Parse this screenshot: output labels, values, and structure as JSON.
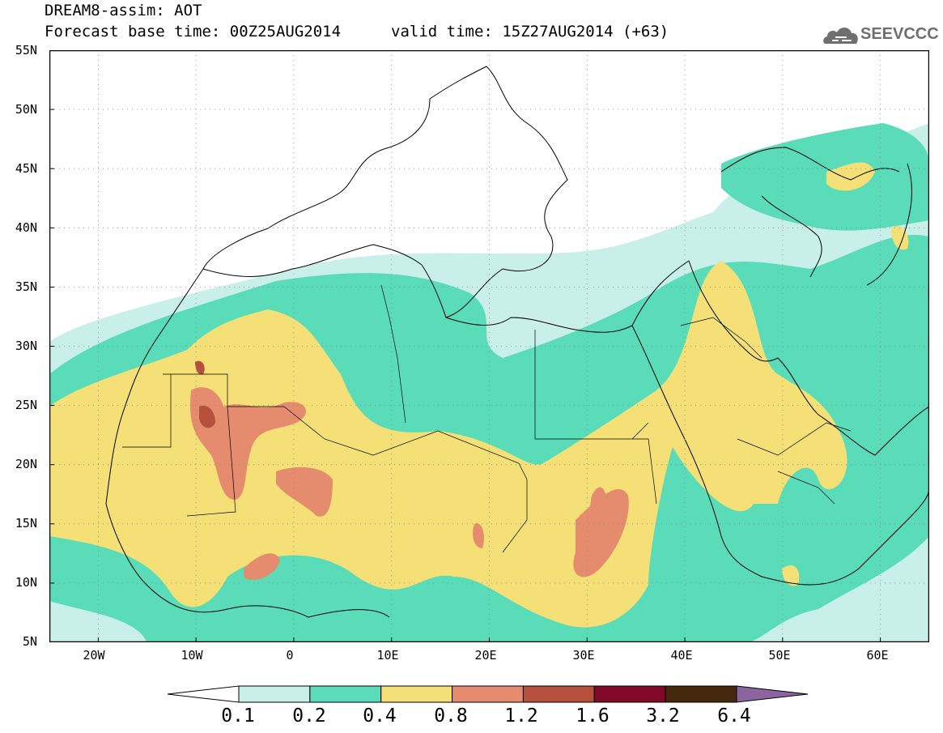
{
  "header": {
    "line1": "DREAM8-assim: AOT",
    "base_time": "Forecast base time: 00Z25AUG2014",
    "valid_time": "valid time: 15Z27AUG2014 (+63)"
  },
  "logo": {
    "text": "SEEVCCC",
    "icon": "cloud-icon",
    "color": "#6f6f6f"
  },
  "map": {
    "projection": "lat-lon",
    "lon_range": [
      -25,
      65
    ],
    "lat_range": [
      5,
      55
    ],
    "grid": "dotted",
    "lat_labels": [
      "55N",
      "50N",
      "45N",
      "40N",
      "35N",
      "30N",
      "25N",
      "20N",
      "15N",
      "10N",
      "5N"
    ],
    "lat_values": [
      55,
      50,
      45,
      40,
      35,
      30,
      25,
      20,
      15,
      10,
      5
    ],
    "lon_labels": [
      "20W",
      "10W",
      "0",
      "10E",
      "20E",
      "30E",
      "40E",
      "50E",
      "60E"
    ],
    "lon_values": [
      -20,
      -10,
      0,
      10,
      20,
      30,
      40,
      50,
      60
    ]
  },
  "colorbar": {
    "labels": [
      "0.1",
      "0.2",
      "0.4",
      "0.8",
      "1.2",
      "1.6",
      "3.2",
      "6.4"
    ],
    "colors": [
      "#ffffff",
      "#c8f0e8",
      "#5adcb8",
      "#f5e078",
      "#e68c6e",
      "#b4503c",
      "#820a28",
      "#46280f",
      "#8c64a0"
    ]
  }
}
